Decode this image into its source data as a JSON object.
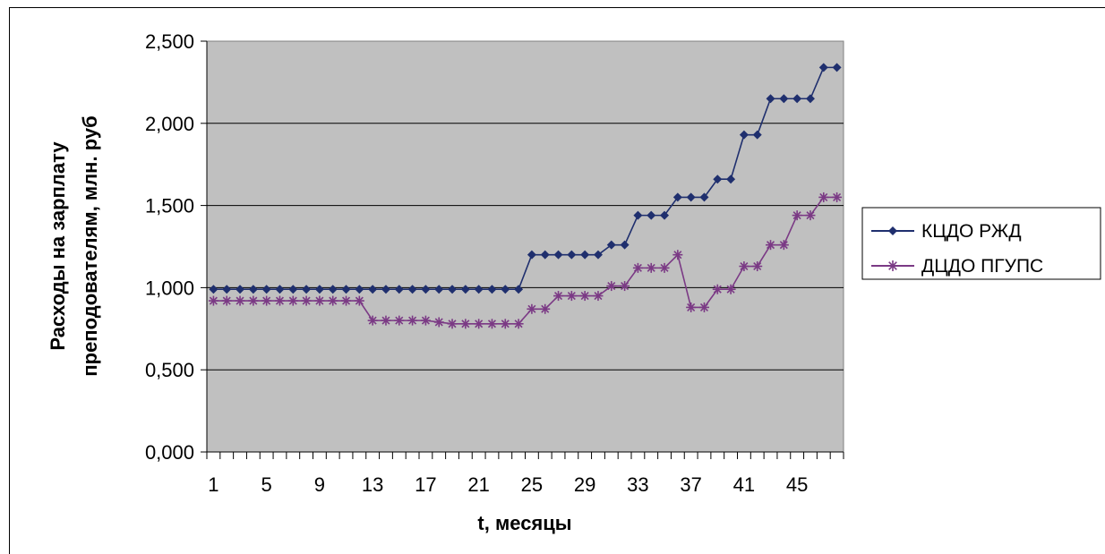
{
  "chart_data": {
    "type": "line",
    "xlabel": "t, месяцы",
    "ylabel_lines": [
      "Расходы на зарплату",
      "преподователям, млн. руб"
    ],
    "ylim": [
      0,
      2.5
    ],
    "yticks": [
      "0,000",
      "0,500",
      "1,000",
      "1,500",
      "2,000",
      "2,500"
    ],
    "x": [
      1,
      2,
      3,
      4,
      5,
      6,
      7,
      8,
      9,
      10,
      11,
      12,
      13,
      14,
      15,
      16,
      17,
      18,
      19,
      20,
      21,
      22,
      23,
      24,
      25,
      26,
      27,
      28,
      29,
      30,
      31,
      32,
      33,
      34,
      35,
      36,
      37,
      38,
      39,
      40,
      41,
      42,
      43,
      44,
      45,
      46,
      47,
      48
    ],
    "xticks": [
      "1",
      "5",
      "9",
      "13",
      "17",
      "21",
      "25",
      "29",
      "33",
      "37",
      "41",
      "45"
    ],
    "grid": true,
    "legend": "right",
    "plot_background": "#c0c0c0",
    "series": [
      {
        "name": "КЦДО РЖД",
        "color": "#1f2f6e",
        "marker": "diamond",
        "values": [
          0.99,
          0.99,
          0.99,
          0.99,
          0.99,
          0.99,
          0.99,
          0.99,
          0.99,
          0.99,
          0.99,
          0.99,
          0.99,
          0.99,
          0.99,
          0.99,
          0.99,
          0.99,
          0.99,
          0.99,
          0.99,
          0.99,
          0.99,
          0.99,
          1.2,
          1.2,
          1.2,
          1.2,
          1.2,
          1.2,
          1.26,
          1.26,
          1.44,
          1.44,
          1.44,
          1.55,
          1.55,
          1.55,
          1.66,
          1.66,
          1.93,
          1.93,
          2.15,
          2.15,
          2.15,
          2.15,
          2.34,
          2.34
        ]
      },
      {
        "name": "ДЦДО ПГУПС",
        "color": "#7b3a85",
        "marker": "asterisk",
        "values": [
          0.92,
          0.92,
          0.92,
          0.92,
          0.92,
          0.92,
          0.92,
          0.92,
          0.92,
          0.92,
          0.92,
          0.92,
          0.8,
          0.8,
          0.8,
          0.8,
          0.8,
          0.79,
          0.78,
          0.78,
          0.78,
          0.78,
          0.78,
          0.78,
          0.87,
          0.87,
          0.95,
          0.95,
          0.95,
          0.95,
          1.01,
          1.01,
          1.12,
          1.12,
          1.12,
          1.2,
          0.88,
          0.88,
          0.99,
          0.99,
          1.13,
          1.13,
          1.26,
          1.26,
          1.44,
          1.44,
          1.55,
          1.55
        ]
      }
    ]
  }
}
